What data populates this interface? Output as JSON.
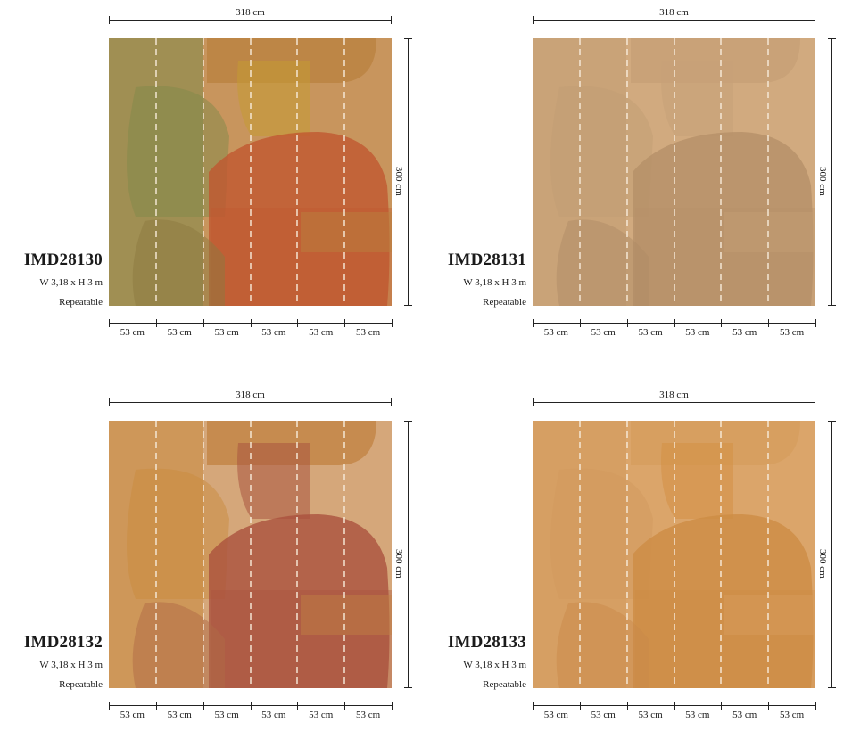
{
  "panels": [
    {
      "code": "IMD28130",
      "size": "W 3,18 x H 3 m",
      "repeat": "Repeatable",
      "width_label": "318 cm",
      "height_label": "300 cm",
      "strip_labels": [
        "53 cm",
        "53 cm",
        "53 cm",
        "53 cm",
        "53 cm",
        "53 cm"
      ],
      "colors": {
        "bg": "#c8955d",
        "a": "#7f8a4a",
        "b": "#c0562f",
        "c": "#c59b33",
        "d": "#b9823f",
        "e": "#8b7a3f"
      }
    },
    {
      "code": "IMD28131",
      "size": "W 3,18 x H 3 m",
      "repeat": "Repeatable",
      "width_label": "318 cm",
      "height_label": "300 cm",
      "strip_labels": [
        "53 cm",
        "53 cm",
        "53 cm",
        "53 cm",
        "53 cm",
        "53 cm"
      ],
      "colors": {
        "bg": "#d1aa7f",
        "a": "#c29d73",
        "b": "#b59068",
        "c": "#c6a078",
        "d": "#c59f76",
        "e": "#b08c65"
      }
    },
    {
      "code": "IMD28132",
      "size": "W 3,18 x H 3 m",
      "repeat": "Repeatable",
      "width_label": "318 cm",
      "height_label": "300 cm",
      "strip_labels": [
        "53 cm",
        "53 cm",
        "53 cm",
        "53 cm",
        "53 cm",
        "53 cm"
      ],
      "colors": {
        "bg": "#d5a77a",
        "a": "#c98b3e",
        "b": "#a9503c",
        "c": "#a9553f",
        "d": "#c08242",
        "e": "#b06a45"
      }
    },
    {
      "code": "IMD28133",
      "size": "W 3,18 x H 3 m",
      "repeat": "Repeatable",
      "width_label": "318 cm",
      "height_label": "300 cm",
      "strip_labels": [
        "53 cm",
        "53 cm",
        "53 cm",
        "53 cm",
        "53 cm",
        "53 cm"
      ],
      "colors": {
        "bg": "#dba56a",
        "a": "#d19a5d",
        "b": "#cd8c44",
        "c": "#d39043",
        "d": "#d69e5e",
        "e": "#c98a4a"
      }
    }
  ]
}
